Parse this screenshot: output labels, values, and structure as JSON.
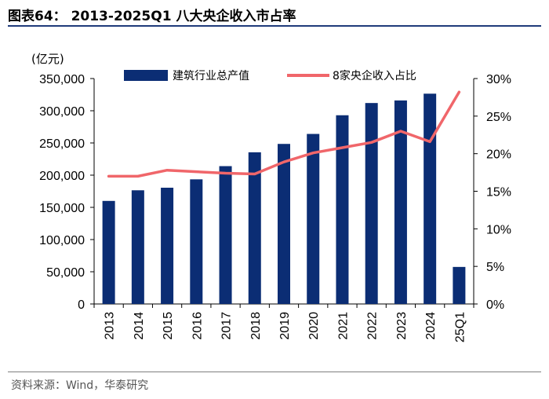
{
  "header": {
    "title": "图表64：  2013-2025Q1 八大央企收入市占率"
  },
  "footer": {
    "source": "资料来源：Wind，华泰研究"
  },
  "colors": {
    "bar": "#0b2d74",
    "line": "#f0666a",
    "rule": "#1f3b7a"
  },
  "chart_data": {
    "type": "bar",
    "title": "2013-2025Q1 八大央企收入市占率",
    "ylabel_left": "(亿元)",
    "ylim_left": [
      0,
      350000
    ],
    "ylim_right": [
      0,
      30
    ],
    "yticks_left": [
      "0",
      "50,000",
      "100,000",
      "150,000",
      "200,000",
      "250,000",
      "300,000",
      "350,000"
    ],
    "yticks_right": [
      "0%",
      "5%",
      "10%",
      "15%",
      "20%",
      "25%",
      "30%"
    ],
    "categories": [
      "2013",
      "2014",
      "2015",
      "2016",
      "2017",
      "2018",
      "2019",
      "2020",
      "2021",
      "2022",
      "2023",
      "2024",
      "25Q1"
    ],
    "series": [
      {
        "name": "建筑行业总产值",
        "type": "bar",
        "axis": "left",
        "values": [
          160000,
          176500,
          180500,
          193500,
          214000,
          235500,
          248500,
          264000,
          293000,
          312000,
          316000,
          326500,
          57500
        ]
      },
      {
        "name": "8家央企收入占比",
        "type": "line",
        "axis": "right",
        "values": [
          17.0,
          17.0,
          17.8,
          17.6,
          17.4,
          17.3,
          18.9,
          20.1,
          20.8,
          21.5,
          23.0,
          21.6,
          28.2
        ]
      }
    ],
    "legend": {
      "placement": "top"
    }
  }
}
